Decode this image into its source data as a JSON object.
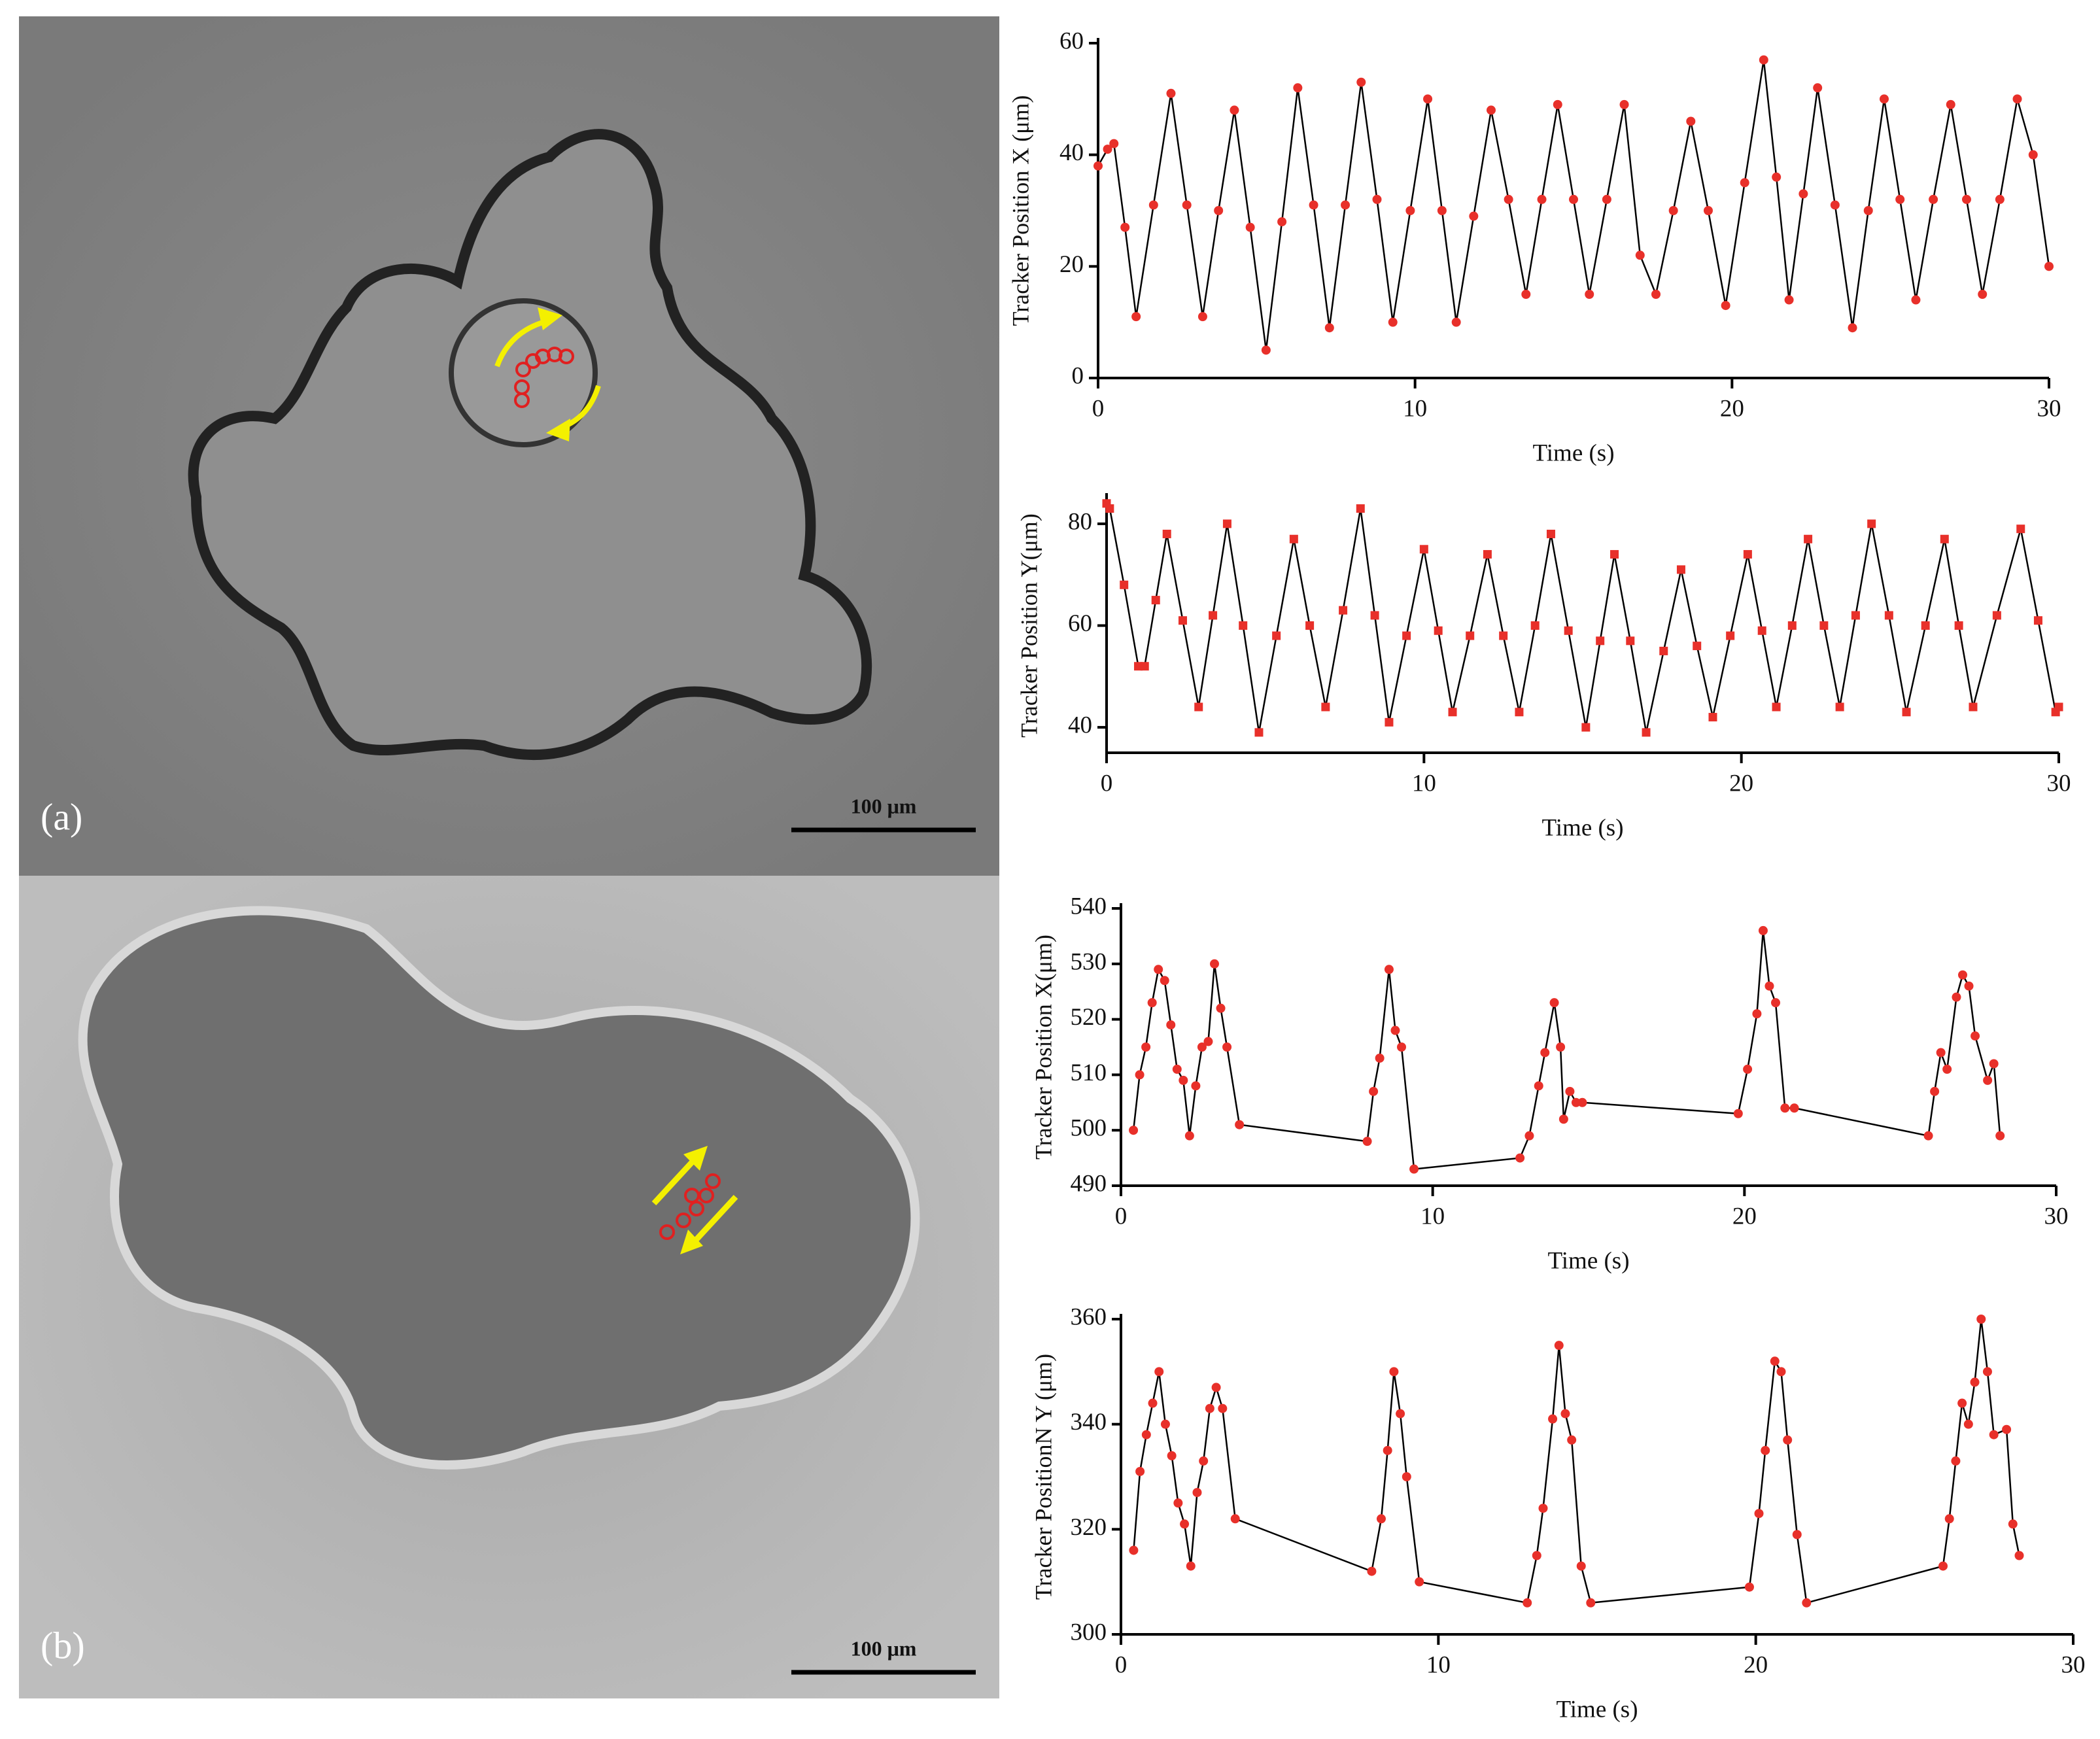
{
  "panels": [
    {
      "label": "(a)",
      "scale_bar": "100 μm"
    },
    {
      "label": "(b)",
      "scale_bar": "100 μm"
    }
  ],
  "chart_data": [
    {
      "type": "line",
      "xlabel": "Time (s)",
      "ylabel": "Tracker Position X (μm)",
      "xlim": [
        0,
        30
      ],
      "xticks": [
        0,
        10,
        20,
        30
      ],
      "ylim": [
        0,
        60
      ],
      "yticks": [
        0,
        20,
        40,
        60
      ],
      "color": "#e8302a",
      "line_color": "#000000",
      "marker": "circle",
      "x": [
        0,
        0.3,
        0.5,
        0.85,
        1.2,
        1.75,
        2.3,
        2.8,
        3.3,
        3.8,
        4.3,
        4.8,
        5.3,
        5.8,
        6.3,
        6.8,
        7.3,
        7.8,
        8.3,
        8.8,
        9.3,
        9.85,
        10.4,
        10.85,
        11.3,
        11.85,
        12.4,
        12.95,
        13.5,
        14.0,
        14.5,
        15.0,
        15.5,
        16.05,
        16.6,
        17.1,
        17.6,
        18.15,
        18.7,
        19.25,
        19.8,
        20.4,
        21.0,
        21.4,
        21.8,
        22.25,
        22.7,
        23.25,
        23.8,
        24.3,
        24.8,
        25.3,
        25.8,
        26.35,
        26.9,
        27.4,
        27.9,
        28.45,
        29.0,
        29.5,
        30
      ],
      "values": [
        38,
        41,
        42,
        27,
        11,
        31,
        51,
        31,
        11,
        30,
        48,
        27,
        5,
        28,
        52,
        31,
        9,
        31,
        53,
        32,
        10,
        30,
        50,
        30,
        10,
        29,
        48,
        32,
        15,
        32,
        49,
        32,
        15,
        32,
        49,
        22,
        15,
        30,
        46,
        30,
        13,
        35,
        57,
        36,
        14,
        33,
        52,
        31,
        9,
        30,
        50,
        32,
        14,
        32,
        49,
        32,
        15,
        32,
        50,
        40,
        20
      ]
    },
    {
      "type": "line",
      "xlabel": "Time (s)",
      "ylabel": "Tracker Position Y(μm)",
      "xlim": [
        0,
        30
      ],
      "xticks": [
        0,
        10,
        20,
        30
      ],
      "ylim": [
        35,
        85
      ],
      "yticks": [
        40,
        60,
        80
      ],
      "color": "#e8302a",
      "line_color": "#000000",
      "marker": "square",
      "x": [
        0,
        0.1,
        0.55,
        1.0,
        1.2,
        1.55,
        1.9,
        2.4,
        2.9,
        3.35,
        3.8,
        4.3,
        4.8,
        5.35,
        5.9,
        6.4,
        6.9,
        7.45,
        8.0,
        8.45,
        8.9,
        9.45,
        10.0,
        10.45,
        10.9,
        11.45,
        12.0,
        12.5,
        13.0,
        13.5,
        14.0,
        14.55,
        15.1,
        15.55,
        16.0,
        16.5,
        17.0,
        17.55,
        18.1,
        18.6,
        19.1,
        19.65,
        20.2,
        20.65,
        21.1,
        21.6,
        22.1,
        22.6,
        23.1,
        23.6,
        24.1,
        24.65,
        25.2,
        25.8,
        26.4,
        26.85,
        27.3,
        28.05,
        28.8,
        29.35,
        29.9,
        30
      ],
      "values": [
        84,
        83,
        68,
        52,
        52,
        65,
        78,
        61,
        44,
        62,
        80,
        60,
        39,
        58,
        77,
        60,
        44,
        63,
        83,
        62,
        41,
        58,
        75,
        59,
        43,
        58,
        74,
        58,
        43,
        60,
        78,
        59,
        40,
        57,
        74,
        57,
        39,
        55,
        71,
        56,
        42,
        58,
        74,
        59,
        44,
        60,
        77,
        60,
        44,
        62,
        80,
        62,
        43,
        60,
        77,
        60,
        44,
        62,
        79,
        61,
        43,
        44
      ]
    },
    {
      "type": "line",
      "xlabel": "Time (s)",
      "ylabel": "Tracker Position X(μm)",
      "xlim": [
        0,
        30
      ],
      "xticks": [
        0,
        10,
        20,
        30
      ],
      "ylim": [
        490,
        540
      ],
      "yticks": [
        490,
        500,
        510,
        520,
        530,
        540
      ],
      "color": "#e8302a",
      "line_color": "#000000",
      "marker": "circle",
      "x": [
        0.4,
        0.6,
        0.8,
        1.0,
        1.2,
        1.4,
        1.6,
        1.8,
        2.0,
        2.2,
        2.4,
        2.6,
        2.8,
        3.0,
        3.2,
        3.4,
        3.8,
        7.9,
        8.1,
        8.3,
        8.6,
        8.8,
        9.0,
        9.4,
        12.8,
        13.1,
        13.4,
        13.6,
        13.9,
        14.1,
        14.2,
        14.4,
        14.6,
        14.8,
        19.8,
        20.1,
        20.4,
        20.6,
        20.8,
        21.0,
        21.3,
        21.6,
        25.9,
        26.1,
        26.3,
        26.5,
        26.8,
        27.0,
        27.2,
        27.4,
        27.8,
        28.0,
        28.2
      ],
      "values": [
        500,
        510,
        515,
        523,
        529,
        527,
        519,
        511,
        509,
        499,
        508,
        515,
        516,
        530,
        522,
        515,
        501,
        498,
        507,
        513,
        529,
        518,
        515,
        493,
        495,
        499,
        508,
        514,
        523,
        515,
        502,
        507,
        505,
        505,
        503,
        511,
        521,
        536,
        526,
        523,
        504,
        504,
        499,
        507,
        514,
        511,
        524,
        528,
        526,
        517,
        509,
        512,
        499
      ]
    },
    {
      "type": "line",
      "xlabel": "Time (s)",
      "ylabel": "Tracker PositionN Y (μm)",
      "xlim": [
        0,
        30
      ],
      "xticks": [
        0,
        10,
        20,
        30
      ],
      "ylim": [
        300,
        360
      ],
      "yticks": [
        300,
        320,
        340,
        360
      ],
      "color": "#e8302a",
      "line_color": "#000000",
      "marker": "circle",
      "x": [
        0.4,
        0.6,
        0.8,
        1.0,
        1.2,
        1.4,
        1.6,
        1.8,
        2.0,
        2.2,
        2.4,
        2.6,
        2.8,
        3.0,
        3.2,
        3.6,
        7.9,
        8.2,
        8.4,
        8.6,
        8.8,
        9.0,
        9.4,
        12.8,
        13.1,
        13.3,
        13.6,
        13.8,
        14.0,
        14.2,
        14.5,
        14.8,
        19.8,
        20.1,
        20.3,
        20.6,
        20.8,
        21.0,
        21.3,
        21.6,
        25.9,
        26.1,
        26.3,
        26.5,
        26.7,
        26.9,
        27.1,
        27.3,
        27.5,
        27.9,
        28.1,
        28.3
      ],
      "values": [
        316,
        331,
        338,
        344,
        350,
        340,
        334,
        325,
        321,
        313,
        327,
        333,
        343,
        347,
        343,
        322,
        312,
        322,
        335,
        350,
        342,
        330,
        310,
        306,
        315,
        324,
        341,
        355,
        342,
        337,
        313,
        306,
        309,
        323,
        335,
        352,
        350,
        337,
        319,
        306,
        313,
        322,
        333,
        344,
        340,
        348,
        360,
        350,
        338,
        339,
        321,
        315
      ]
    }
  ]
}
